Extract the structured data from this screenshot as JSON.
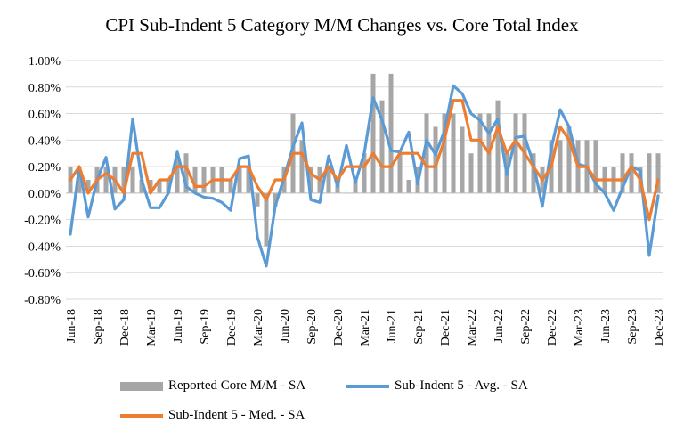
{
  "chart_data": {
    "type": "bar+line",
    "title": "CPI Sub-Indent 5 Category M/M Changes vs. Core Total Index",
    "xlabel": "",
    "ylabel": "",
    "ylim": [
      -0.8,
      1.0
    ],
    "y_ticks": [
      "-0.80%",
      "-0.60%",
      "-0.40%",
      "-0.20%",
      "0.00%",
      "0.20%",
      "0.40%",
      "0.60%",
      "0.80%",
      "1.00%"
    ],
    "y_tick_values": [
      -0.8,
      -0.6,
      -0.4,
      -0.2,
      0.0,
      0.2,
      0.4,
      0.6,
      0.8,
      1.0
    ],
    "grid": true,
    "legend_position": "bottom",
    "categories": [
      "Jun-18",
      "Jul-18",
      "Aug-18",
      "Sep-18",
      "Oct-18",
      "Nov-18",
      "Dec-18",
      "Jan-19",
      "Feb-19",
      "Mar-19",
      "Apr-19",
      "May-19",
      "Jun-19",
      "Jul-19",
      "Aug-19",
      "Sep-19",
      "Oct-19",
      "Nov-19",
      "Dec-19",
      "Jan-20",
      "Feb-20",
      "Mar-20",
      "Apr-20",
      "May-20",
      "Jun-20",
      "Jul-20",
      "Aug-20",
      "Sep-20",
      "Oct-20",
      "Nov-20",
      "Dec-20",
      "Jan-21",
      "Feb-21",
      "Mar-21",
      "Apr-21",
      "May-21",
      "Jun-21",
      "Jul-21",
      "Aug-21",
      "Sep-21",
      "Oct-21",
      "Nov-21",
      "Dec-21",
      "Jan-22",
      "Feb-22",
      "Mar-22",
      "Apr-22",
      "May-22",
      "Jun-22",
      "Jul-22",
      "Aug-22",
      "Sep-22",
      "Oct-22",
      "Nov-22",
      "Dec-22",
      "Jan-23",
      "Feb-23",
      "Mar-23",
      "Apr-23",
      "May-23",
      "Jun-23",
      "Jul-23",
      "Aug-23",
      "Sep-23",
      "Oct-23",
      "Nov-23",
      "Dec-23"
    ],
    "x_tick_labels": [
      "Jun-18",
      "Sep-18",
      "Dec-18",
      "Mar-19",
      "Jun-19",
      "Sep-19",
      "Dec-19",
      "Mar-20",
      "Jun-20",
      "Sep-20",
      "Dec-20",
      "Mar-21",
      "Jun-21",
      "Sep-21",
      "Dec-21",
      "Mar-22",
      "Jun-22",
      "Sep-22",
      "Dec-22",
      "Mar-23",
      "Jun-23",
      "Sep-23",
      "Dec-23"
    ],
    "series": [
      {
        "name": "Reported Core M/M - SA",
        "kind": "bar",
        "color": "#a6a6a6",
        "values": [
          0.2,
          0.2,
          0.1,
          0.2,
          0.2,
          0.2,
          0.2,
          0.2,
          0.1,
          0.1,
          0.1,
          0.1,
          0.3,
          0.3,
          0.2,
          0.2,
          0.2,
          0.2,
          0.1,
          0.2,
          0.2,
          -0.1,
          -0.4,
          -0.1,
          0.2,
          0.6,
          0.4,
          0.2,
          0.2,
          0.2,
          0.1,
          0.0,
          0.1,
          0.3,
          0.9,
          0.7,
          0.9,
          0.3,
          0.1,
          0.2,
          0.6,
          0.5,
          0.6,
          0.6,
          0.5,
          0.3,
          0.6,
          0.6,
          0.7,
          0.3,
          0.6,
          0.6,
          0.3,
          0.2,
          0.4,
          0.4,
          0.5,
          0.4,
          0.4,
          0.4,
          0.2,
          0.2,
          0.3,
          0.3,
          0.2,
          0.3,
          0.3
        ]
      },
      {
        "name": "Sub-Indent 5 - Avg. - SA",
        "kind": "line",
        "color": "#5b9bd5",
        "values": [
          -0.31,
          0.2,
          -0.18,
          0.1,
          0.27,
          -0.12,
          -0.05,
          0.56,
          0.1,
          -0.11,
          -0.11,
          0.0,
          0.31,
          0.05,
          0.0,
          -0.03,
          -0.04,
          -0.07,
          -0.13,
          0.26,
          0.28,
          -0.33,
          -0.55,
          -0.1,
          0.12,
          0.35,
          0.53,
          -0.05,
          -0.07,
          0.28,
          0.05,
          0.36,
          0.08,
          0.3,
          0.72,
          0.55,
          0.32,
          0.31,
          0.46,
          0.07,
          0.4,
          0.29,
          0.47,
          0.81,
          0.75,
          0.6,
          0.55,
          0.45,
          0.56,
          0.14,
          0.42,
          0.43,
          0.22,
          -0.1,
          0.34,
          0.63,
          0.5,
          0.22,
          0.2,
          0.07,
          0.0,
          -0.13,
          0.04,
          0.2,
          0.17,
          -0.47,
          -0.02
        ]
      },
      {
        "name": "Sub-Indent 5 - Med. - SA",
        "kind": "line",
        "color": "#ed7d31",
        "values": [
          0.1,
          0.2,
          0.0,
          0.1,
          0.15,
          0.1,
          0.0,
          0.3,
          0.3,
          0.0,
          0.1,
          0.1,
          0.2,
          0.2,
          0.05,
          0.05,
          0.1,
          0.1,
          0.1,
          0.2,
          0.2,
          0.05,
          -0.05,
          0.1,
          0.1,
          0.3,
          0.3,
          0.15,
          0.1,
          0.2,
          0.1,
          0.2,
          0.2,
          0.2,
          0.3,
          0.2,
          0.2,
          0.3,
          0.3,
          0.3,
          0.2,
          0.2,
          0.4,
          0.7,
          0.7,
          0.4,
          0.4,
          0.3,
          0.5,
          0.3,
          0.4,
          0.3,
          0.2,
          0.1,
          0.2,
          0.5,
          0.4,
          0.2,
          0.2,
          0.1,
          0.1,
          0.1,
          0.1,
          0.2,
          0.1,
          -0.2,
          0.1
        ]
      }
    ]
  }
}
